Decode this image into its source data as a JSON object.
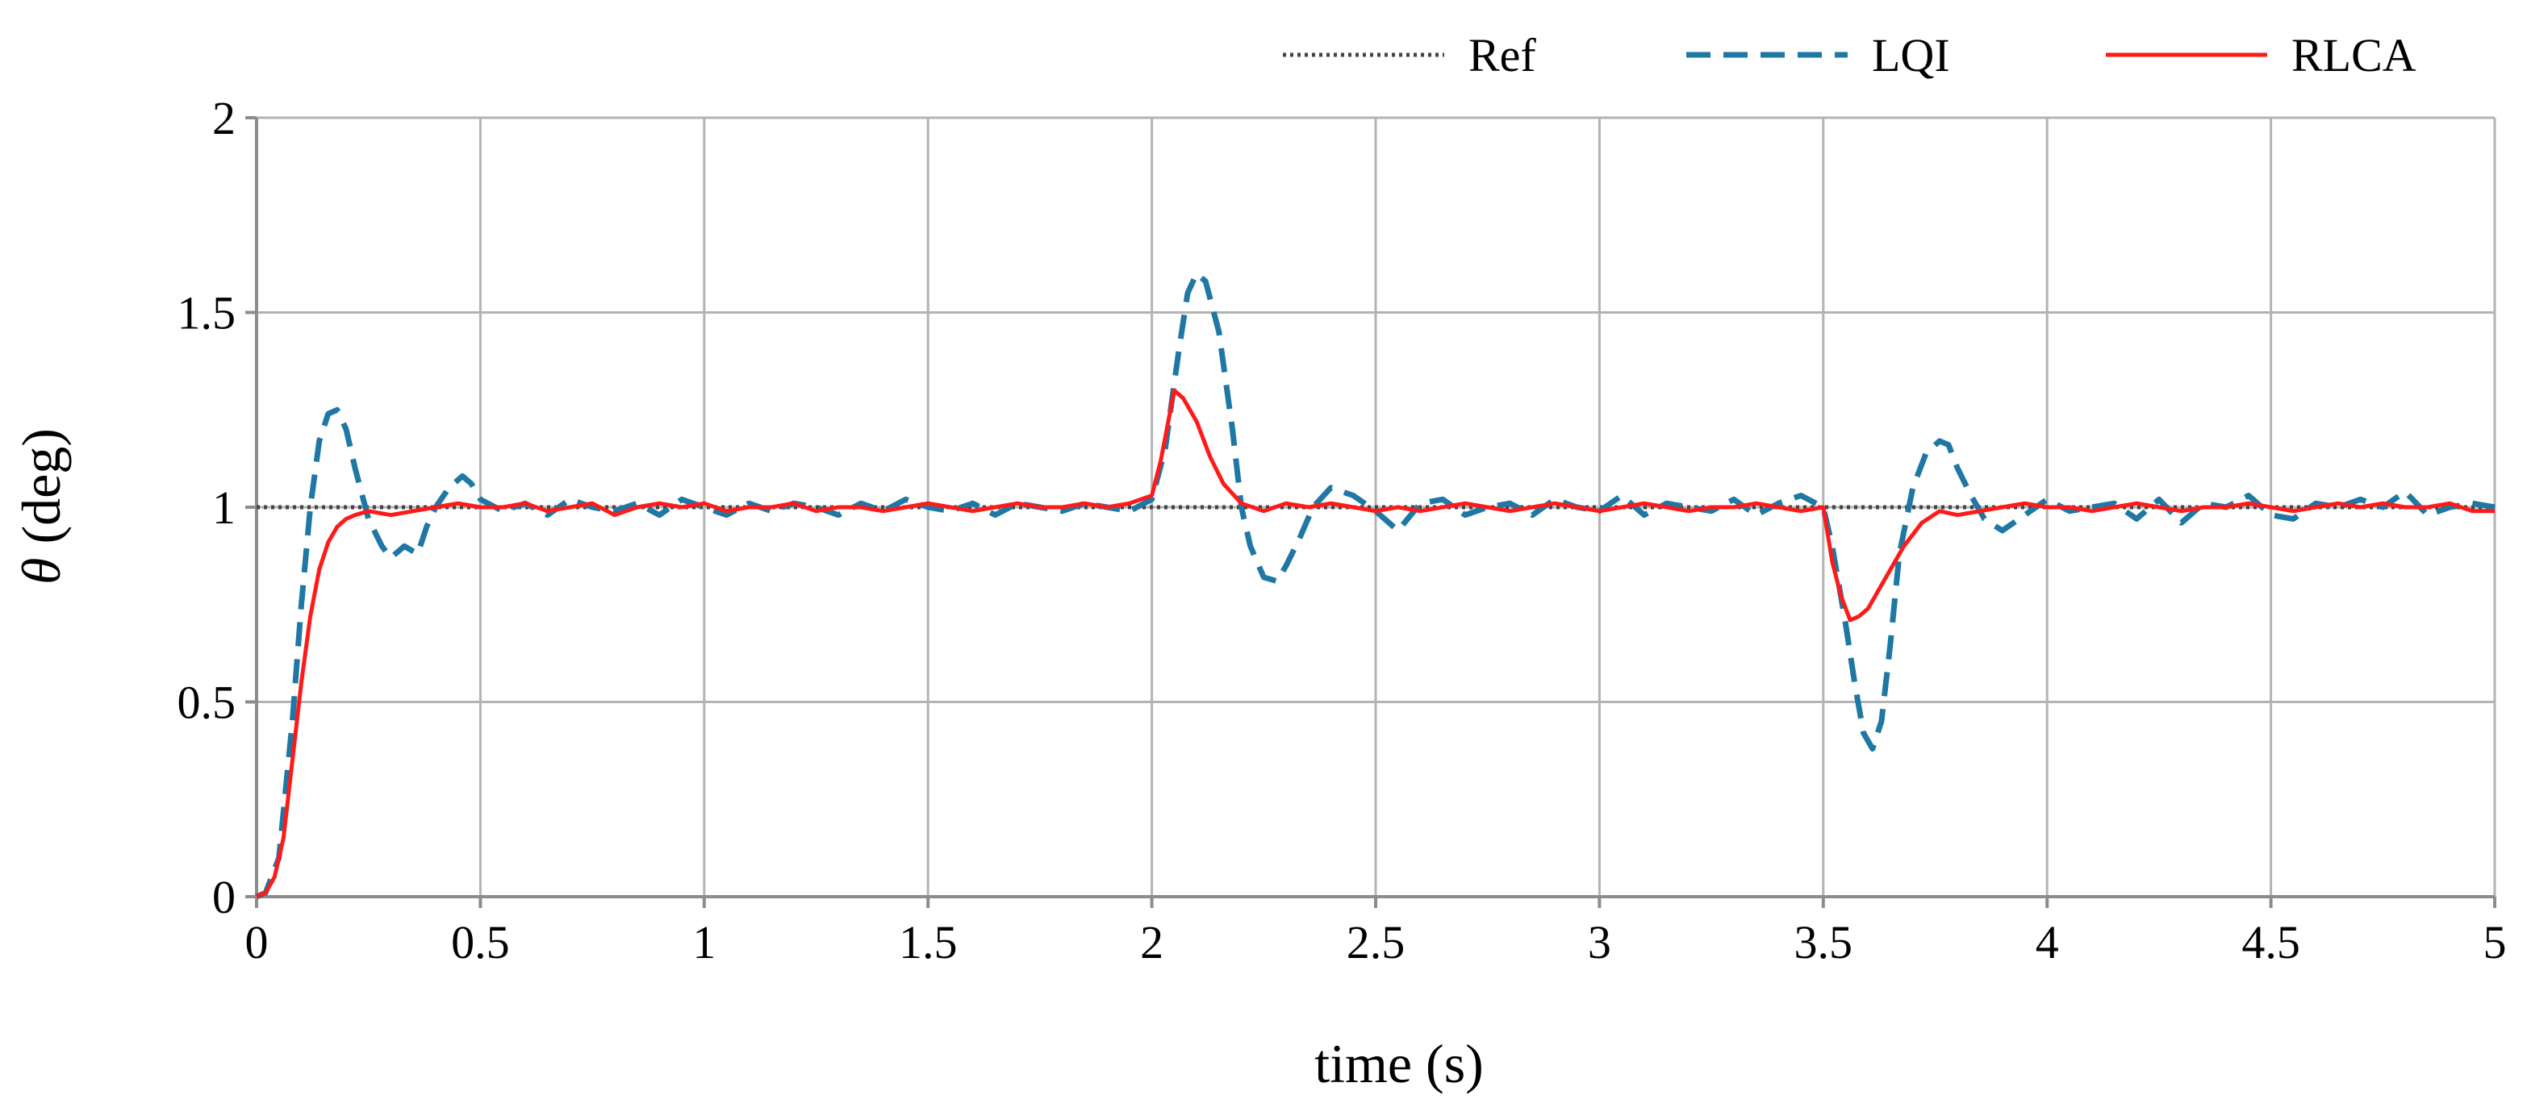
{
  "chart_data": {
    "type": "line",
    "title": "",
    "xlabel": "time (s)",
    "ylabel_symbol": "θ",
    "ylabel_unit": " (deg)",
    "xlim": [
      0,
      5
    ],
    "ylim": [
      0,
      2
    ],
    "x_ticks": [
      0,
      0.5,
      1,
      1.5,
      2,
      2.5,
      3,
      3.5,
      4,
      4.5,
      5
    ],
    "x_tick_labels": [
      "0",
      "0.5",
      "1",
      "1.5",
      "2",
      "2.5",
      "3",
      "3.5",
      "4",
      "4.5",
      "5"
    ],
    "y_ticks": [
      0,
      0.5,
      1,
      1.5,
      2
    ],
    "y_tick_labels": [
      "0",
      "0.5",
      "1",
      "1.5",
      "2"
    ],
    "grid": true,
    "legend_position": "top-right",
    "series": [
      {
        "name": "Ref",
        "color": "#444444",
        "style": "dotted",
        "x": [
          0,
          5
        ],
        "y": [
          1,
          1
        ]
      },
      {
        "name": "LQI",
        "color": "#1f77a4",
        "style": "dashed",
        "x": [
          0,
          0.02,
          0.05,
          0.08,
          0.1,
          0.12,
          0.14,
          0.16,
          0.18,
          0.2,
          0.22,
          0.25,
          0.28,
          0.3,
          0.33,
          0.36,
          0.38,
          0.4,
          0.43,
          0.46,
          0.48,
          0.5,
          0.55,
          0.6,
          0.65,
          0.7,
          0.75,
          0.8,
          0.85,
          0.9,
          0.95,
          1.0,
          1.05,
          1.1,
          1.15,
          1.2,
          1.25,
          1.3,
          1.35,
          1.4,
          1.45,
          1.5,
          1.55,
          1.6,
          1.65,
          1.7,
          1.75,
          1.8,
          1.85,
          1.9,
          1.95,
          2.0,
          2.03,
          2.06,
          2.08,
          2.1,
          2.12,
          2.15,
          2.18,
          2.2,
          2.22,
          2.25,
          2.28,
          2.3,
          2.33,
          2.36,
          2.4,
          2.45,
          2.5,
          2.55,
          2.6,
          2.65,
          2.7,
          2.75,
          2.8,
          2.85,
          2.9,
          2.95,
          3.0,
          3.05,
          3.1,
          3.15,
          3.2,
          3.25,
          3.3,
          3.35,
          3.4,
          3.45,
          3.5,
          3.52,
          3.55,
          3.57,
          3.59,
          3.61,
          3.63,
          3.65,
          3.67,
          3.7,
          3.73,
          3.76,
          3.78,
          3.8,
          3.83,
          3.86,
          3.9,
          3.95,
          4.0,
          4.05,
          4.1,
          4.15,
          4.2,
          4.25,
          4.3,
          4.35,
          4.4,
          4.45,
          4.5,
          4.55,
          4.6,
          4.65,
          4.7,
          4.75,
          4.8,
          4.85,
          4.9,
          4.95,
          5.0
        ],
        "y": [
          0,
          0.01,
          0.1,
          0.45,
          0.75,
          1.0,
          1.17,
          1.24,
          1.25,
          1.2,
          1.1,
          0.97,
          0.9,
          0.87,
          0.9,
          0.88,
          0.95,
          1.0,
          1.05,
          1.08,
          1.06,
          1.02,
          0.99,
          1.01,
          0.98,
          1.02,
          1.0,
          0.99,
          1.01,
          0.98,
          1.02,
          1.0,
          0.98,
          1.01,
          0.99,
          1.01,
          1.0,
          0.98,
          1.01,
          0.99,
          1.02,
          1.0,
          0.99,
          1.01,
          0.98,
          1.01,
          1.0,
          0.99,
          1.01,
          1.0,
          0.99,
          1.02,
          1.15,
          1.4,
          1.55,
          1.6,
          1.58,
          1.45,
          1.2,
          1.0,
          0.9,
          0.82,
          0.81,
          0.85,
          0.92,
          1.0,
          1.05,
          1.03,
          0.99,
          0.94,
          1.01,
          1.02,
          0.98,
          1.0,
          1.01,
          0.98,
          1.02,
          1.0,
          0.99,
          1.03,
          0.98,
          1.01,
          1.0,
          0.99,
          1.02,
          0.98,
          1.01,
          1.03,
          1.0,
          0.9,
          0.7,
          0.55,
          0.42,
          0.38,
          0.45,
          0.65,
          0.88,
          1.05,
          1.14,
          1.17,
          1.16,
          1.1,
          1.03,
          0.97,
          0.94,
          0.98,
          1.02,
          0.99,
          1.0,
          1.01,
          0.97,
          1.02,
          0.96,
          1.01,
          1.0,
          1.03,
          0.98,
          0.97,
          1.01,
          1.0,
          1.02,
          1.0,
          1.04,
          0.98,
          1.0,
          1.01,
          1.0
        ]
      },
      {
        "name": "RLCA",
        "color": "#ff1a1a",
        "style": "solid",
        "x": [
          0,
          0.02,
          0.04,
          0.06,
          0.08,
          0.1,
          0.12,
          0.14,
          0.16,
          0.18,
          0.2,
          0.22,
          0.25,
          0.3,
          0.35,
          0.4,
          0.45,
          0.5,
          0.55,
          0.6,
          0.65,
          0.7,
          0.75,
          0.8,
          0.85,
          0.9,
          0.95,
          1.0,
          1.05,
          1.1,
          1.15,
          1.2,
          1.25,
          1.3,
          1.35,
          1.4,
          1.45,
          1.5,
          1.55,
          1.6,
          1.65,
          1.7,
          1.75,
          1.8,
          1.85,
          1.9,
          1.95,
          2.0,
          2.02,
          2.04,
          2.05,
          2.07,
          2.1,
          2.13,
          2.16,
          2.2,
          2.25,
          2.3,
          2.35,
          2.4,
          2.45,
          2.5,
          2.55,
          2.6,
          2.65,
          2.7,
          2.75,
          2.8,
          2.85,
          2.9,
          2.95,
          3.0,
          3.05,
          3.1,
          3.15,
          3.2,
          3.25,
          3.3,
          3.35,
          3.4,
          3.45,
          3.5,
          3.52,
          3.54,
          3.56,
          3.58,
          3.6,
          3.62,
          3.65,
          3.68,
          3.72,
          3.76,
          3.8,
          3.85,
          3.9,
          3.95,
          4.0,
          4.05,
          4.1,
          4.15,
          4.2,
          4.25,
          4.3,
          4.35,
          4.4,
          4.45,
          4.5,
          4.55,
          4.6,
          4.65,
          4.7,
          4.75,
          4.8,
          4.85,
          4.9,
          4.95,
          5.0
        ],
        "y": [
          0,
          0.01,
          0.05,
          0.15,
          0.35,
          0.55,
          0.72,
          0.84,
          0.91,
          0.95,
          0.97,
          0.98,
          0.99,
          0.98,
          0.99,
          1.0,
          1.01,
          1.0,
          1.0,
          1.01,
          0.99,
          1.0,
          1.01,
          0.98,
          1.0,
          1.01,
          1.0,
          1.01,
          0.99,
          1.0,
          1.0,
          1.01,
          0.99,
          1.0,
          1.0,
          0.99,
          1.0,
          1.01,
          1.0,
          0.99,
          1.0,
          1.01,
          1.0,
          1.0,
          1.01,
          1.0,
          1.01,
          1.03,
          1.12,
          1.24,
          1.3,
          1.28,
          1.22,
          1.13,
          1.06,
          1.01,
          0.99,
          1.01,
          1.0,
          1.01,
          1.0,
          0.99,
          1.0,
          0.99,
          1.0,
          1.01,
          1.0,
          0.99,
          1.0,
          1.01,
          1.0,
          0.99,
          1.0,
          1.01,
          1.0,
          0.99,
          1.0,
          1.0,
          1.01,
          1.0,
          0.99,
          1.0,
          0.86,
          0.77,
          0.71,
          0.72,
          0.74,
          0.78,
          0.84,
          0.9,
          0.96,
          0.99,
          0.98,
          0.99,
          1.0,
          1.01,
          1.0,
          1.0,
          0.99,
          1.0,
          1.01,
          1.0,
          0.99,
          1.0,
          1.0,
          1.01,
          1.0,
          0.99,
          1.0,
          1.01,
          1.0,
          1.01,
          1.0,
          1.0,
          1.01,
          0.99,
          0.99
        ]
      }
    ]
  }
}
